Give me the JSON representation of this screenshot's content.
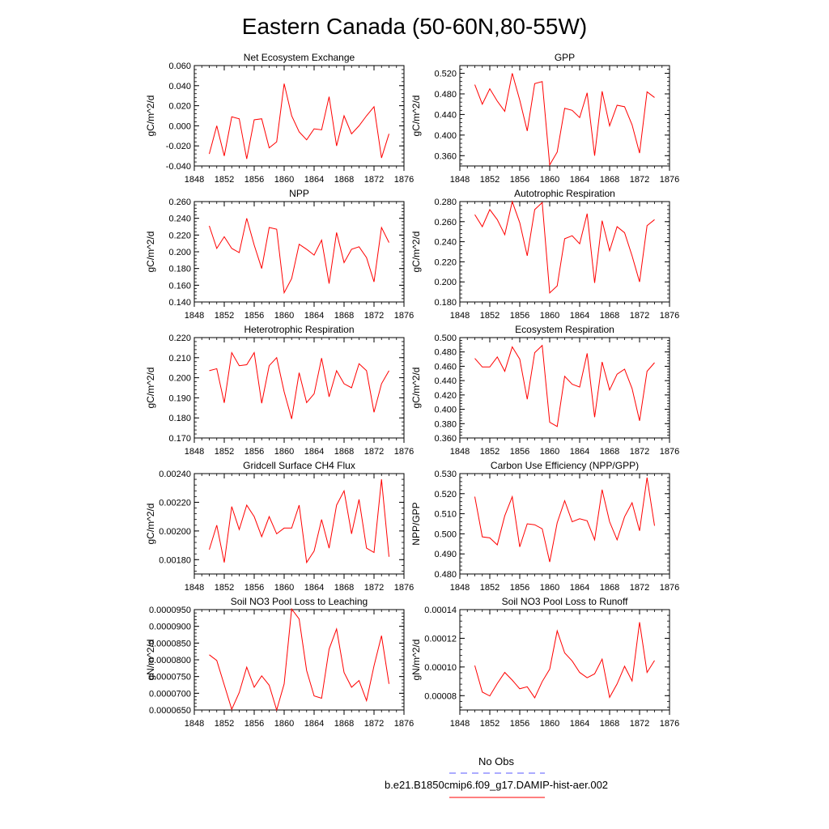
{
  "title": "Eastern Canada (50-60N,80-55W)",
  "x_ticks": [
    "1848",
    "1852",
    "1856",
    "1860",
    "1864",
    "1868",
    "1872",
    "1876"
  ],
  "legend": {
    "obs_label": "No Obs",
    "obs_color": "#5a5aff",
    "model_label": "b.e21.B1850cmip6.f09_g17.DAMIP-hist-aer.002",
    "model_color": "#ff0000"
  },
  "chart_data": [
    {
      "type": "line",
      "title": "Net Ecosystem Exchange",
      "ylabel": "gC/m^2/d",
      "xlim": [
        1848,
        1876
      ],
      "ylim": [
        -0.04,
        0.06
      ],
      "yticks": [
        -0.04,
        -0.02,
        0.0,
        0.02,
        0.04,
        0.06
      ],
      "ytick_labels": [
        "-0.040",
        "-0.020",
        "0.000",
        "0.020",
        "0.040",
        "0.060"
      ],
      "x": [
        1850,
        1851,
        1852,
        1853,
        1854,
        1855,
        1856,
        1857,
        1858,
        1859,
        1860,
        1861,
        1862,
        1863,
        1864,
        1865,
        1866,
        1867,
        1868,
        1869,
        1870,
        1871,
        1872,
        1873,
        1874
      ],
      "series": [
        {
          "color": "#ff0000",
          "values": [
            -0.028,
            0.0,
            -0.03,
            0.009,
            0.007,
            -0.033,
            0.006,
            0.007,
            -0.022,
            -0.016,
            0.042,
            0.01,
            -0.006,
            -0.014,
            -0.003,
            -0.004,
            0.029,
            -0.02,
            0.01,
            -0.008,
            0.0,
            0.01,
            0.019,
            -0.032,
            -0.008
          ]
        }
      ]
    },
    {
      "type": "line",
      "title": "GPP",
      "ylabel": "gC/m^2/d",
      "xlim": [
        1848,
        1876
      ],
      "ylim": [
        0.34,
        0.535
      ],
      "yticks": [
        0.36,
        0.4,
        0.44,
        0.48,
        0.52
      ],
      "ytick_labels": [
        "0.360",
        "0.400",
        "0.440",
        "0.480",
        "0.520"
      ],
      "x": [
        1850,
        1851,
        1852,
        1853,
        1854,
        1855,
        1856,
        1857,
        1858,
        1859,
        1860,
        1861,
        1862,
        1863,
        1864,
        1865,
        1866,
        1867,
        1868,
        1869,
        1870,
        1871,
        1872,
        1873,
        1874
      ],
      "series": [
        {
          "color": "#ff0000",
          "values": [
            0.498,
            0.46,
            0.49,
            0.466,
            0.446,
            0.52,
            0.468,
            0.408,
            0.5,
            0.504,
            0.342,
            0.367,
            0.452,
            0.448,
            0.434,
            0.482,
            0.36,
            0.485,
            0.418,
            0.458,
            0.455,
            0.42,
            0.365,
            0.484,
            0.473
          ]
        }
      ]
    },
    {
      "type": "line",
      "title": "NPP",
      "ylabel": "gC/m^2/d",
      "xlim": [
        1848,
        1876
      ],
      "ylim": [
        0.14,
        0.26
      ],
      "yticks": [
        0.14,
        0.16,
        0.18,
        0.2,
        0.22,
        0.24,
        0.26
      ],
      "ytick_labels": [
        "0.140",
        "0.160",
        "0.180",
        "0.200",
        "0.220",
        "0.240",
        "0.260"
      ],
      "x": [
        1850,
        1851,
        1852,
        1853,
        1854,
        1855,
        1856,
        1857,
        1858,
        1859,
        1860,
        1861,
        1862,
        1863,
        1864,
        1865,
        1866,
        1867,
        1868,
        1869,
        1870,
        1871,
        1872,
        1873,
        1874
      ],
      "series": [
        {
          "color": "#ff0000",
          "values": [
            0.231,
            0.204,
            0.218,
            0.204,
            0.199,
            0.24,
            0.208,
            0.18,
            0.229,
            0.227,
            0.151,
            0.168,
            0.209,
            0.203,
            0.196,
            0.214,
            0.162,
            0.223,
            0.187,
            0.203,
            0.206,
            0.193,
            0.164,
            0.229,
            0.211
          ]
        }
      ]
    },
    {
      "type": "line",
      "title": "Autotrophic Respiration",
      "ylabel": "gC/m^2/d",
      "xlim": [
        1848,
        1876
      ],
      "ylim": [
        0.18,
        0.28
      ],
      "yticks": [
        0.18,
        0.2,
        0.22,
        0.24,
        0.26,
        0.28
      ],
      "ytick_labels": [
        "0.180",
        "0.200",
        "0.220",
        "0.240",
        "0.260",
        "0.280"
      ],
      "x": [
        1850,
        1851,
        1852,
        1853,
        1854,
        1855,
        1856,
        1857,
        1858,
        1859,
        1860,
        1861,
        1862,
        1863,
        1864,
        1865,
        1866,
        1867,
        1868,
        1869,
        1870,
        1871,
        1872,
        1873,
        1874
      ],
      "series": [
        {
          "color": "#ff0000",
          "values": [
            0.267,
            0.255,
            0.272,
            0.262,
            0.247,
            0.28,
            0.259,
            0.226,
            0.272,
            0.279,
            0.189,
            0.196,
            0.243,
            0.246,
            0.238,
            0.268,
            0.199,
            0.261,
            0.231,
            0.255,
            0.249,
            0.226,
            0.2,
            0.256,
            0.262
          ]
        }
      ]
    },
    {
      "type": "line",
      "title": "Heterotrophic Respiration",
      "ylabel": "gC/m^2/d",
      "xlim": [
        1848,
        1876
      ],
      "ylim": [
        0.17,
        0.22
      ],
      "yticks": [
        0.17,
        0.18,
        0.19,
        0.2,
        0.21,
        0.22
      ],
      "ytick_labels": [
        "0.170",
        "0.180",
        "0.190",
        "0.200",
        "0.210",
        "0.220"
      ],
      "x": [
        1850,
        1851,
        1852,
        1853,
        1854,
        1855,
        1856,
        1857,
        1858,
        1859,
        1860,
        1861,
        1862,
        1863,
        1864,
        1865,
        1866,
        1867,
        1868,
        1869,
        1870,
        1871,
        1872,
        1873,
        1874
      ],
      "series": [
        {
          "color": "#ff0000",
          "values": [
            0.2035,
            0.2045,
            0.1875,
            0.2125,
            0.206,
            0.2065,
            0.2125,
            0.1873,
            0.206,
            0.21,
            0.193,
            0.1795,
            0.2025,
            0.1876,
            0.192,
            0.2098,
            0.1905,
            0.2035,
            0.197,
            0.195,
            0.207,
            0.2035,
            0.1828,
            0.197,
            0.2035
          ]
        }
      ]
    },
    {
      "type": "line",
      "title": "Ecosystem Respiration",
      "ylabel": "gC/m^2/d",
      "xlim": [
        1848,
        1876
      ],
      "ylim": [
        0.36,
        0.5
      ],
      "yticks": [
        0.36,
        0.38,
        0.4,
        0.42,
        0.44,
        0.46,
        0.48,
        0.5
      ],
      "ytick_labels": [
        "0.360",
        "0.380",
        "0.400",
        "0.420",
        "0.440",
        "0.460",
        "0.480",
        "0.500"
      ],
      "x": [
        1850,
        1851,
        1852,
        1853,
        1854,
        1855,
        1856,
        1857,
        1858,
        1859,
        1860,
        1861,
        1862,
        1863,
        1864,
        1865,
        1866,
        1867,
        1868,
        1869,
        1870,
        1871,
        1872,
        1873,
        1874
      ],
      "series": [
        {
          "color": "#ff0000",
          "values": [
            0.471,
            0.459,
            0.459,
            0.473,
            0.453,
            0.487,
            0.47,
            0.414,
            0.479,
            0.489,
            0.382,
            0.376,
            0.446,
            0.435,
            0.431,
            0.478,
            0.389,
            0.466,
            0.427,
            0.449,
            0.456,
            0.429,
            0.384,
            0.453,
            0.465
          ]
        }
      ]
    },
    {
      "type": "line",
      "title": "Gridcell Surface CH4 Flux",
      "ylabel": "gC/m^2/d",
      "xlim": [
        1848,
        1876
      ],
      "ylim": [
        0.0017,
        0.0024
      ],
      "yticks": [
        0.0018,
        0.002,
        0.0022,
        0.0024
      ],
      "ytick_labels": [
        "0.00180",
        "0.00200",
        "0.00220",
        "0.00240"
      ],
      "x": [
        1850,
        1851,
        1852,
        1853,
        1854,
        1855,
        1856,
        1857,
        1858,
        1859,
        1860,
        1861,
        1862,
        1863,
        1864,
        1865,
        1866,
        1867,
        1868,
        1869,
        1870,
        1871,
        1872,
        1873,
        1874
      ],
      "series": [
        {
          "color": "#ff0000",
          "values": [
            0.00187,
            0.00204,
            0.00178,
            0.00217,
            0.00201,
            0.00218,
            0.0021,
            0.00196,
            0.0021,
            0.00198,
            0.00202,
            0.00202,
            0.00218,
            0.00178,
            0.00186,
            0.00208,
            0.00188,
            0.00218,
            0.00228,
            0.00198,
            0.00222,
            0.00188,
            0.00185,
            0.00236,
            0.00182
          ]
        }
      ]
    },
    {
      "type": "line",
      "title": "Carbon Use Efficiency (NPP/GPP)",
      "ylabel": "NPP/GPP",
      "xlim": [
        1848,
        1876
      ],
      "ylim": [
        0.48,
        0.53
      ],
      "yticks": [
        0.48,
        0.49,
        0.5,
        0.51,
        0.52,
        0.53
      ],
      "ytick_labels": [
        "0.480",
        "0.490",
        "0.500",
        "0.510",
        "0.520",
        "0.530"
      ],
      "x": [
        1850,
        1851,
        1852,
        1853,
        1854,
        1855,
        1856,
        1857,
        1858,
        1859,
        1860,
        1861,
        1862,
        1863,
        1864,
        1865,
        1866,
        1867,
        1868,
        1869,
        1870,
        1871,
        1872,
        1873,
        1874
      ],
      "series": [
        {
          "color": "#ff0000",
          "values": [
            0.5185,
            0.4985,
            0.498,
            0.4945,
            0.509,
            0.5185,
            0.4935,
            0.505,
            0.5045,
            0.5025,
            0.486,
            0.5055,
            0.5165,
            0.506,
            0.5075,
            0.5065,
            0.497,
            0.522,
            0.506,
            0.497,
            0.5085,
            0.5155,
            0.5015,
            0.528,
            0.504
          ]
        }
      ]
    },
    {
      "type": "line",
      "title": "Soil NO3 Pool Loss to Leaching",
      "ylabel": "gN/m^2/d",
      "xlim": [
        1848,
        1876
      ],
      "ylim": [
        6.5e-05,
        9.5e-05
      ],
      "yticks": [
        6.5e-05,
        7e-05,
        7.5e-05,
        8e-05,
        8.5e-05,
        9e-05,
        9.5e-05
      ],
      "ytick_labels": [
        "0.0000650",
        "0.0000700",
        "0.0000750",
        "0.0000800",
        "0.0000850",
        "0.0000900",
        "0.0000950"
      ],
      "x": [
        1850,
        1851,
        1852,
        1853,
        1854,
        1855,
        1856,
        1857,
        1858,
        1859,
        1860,
        1861,
        1862,
        1863,
        1864,
        1865,
        1866,
        1867,
        1868,
        1869,
        1870,
        1871,
        1872,
        1873,
        1874
      ],
      "series": [
        {
          "color": "#ff0000",
          "values": [
            8.15e-05,
            7.98e-05,
            7.25e-05,
            6.52e-05,
            7.02e-05,
            7.78e-05,
            7.18e-05,
            7.52e-05,
            7.24e-05,
            6.5e-05,
            7.28e-05,
            9.52e-05,
            9.22e-05,
            7.68e-05,
            6.92e-05,
            6.85e-05,
            8.32e-05,
            8.92e-05,
            7.62e-05,
            7.18e-05,
            7.38e-05,
            6.78e-05,
            7.82e-05,
            8.72e-05,
            7.28e-05
          ]
        }
      ]
    },
    {
      "type": "line",
      "title": "Soil NO3 Pool Loss to Runoff",
      "ylabel": "gN/m^2/d",
      "xlim": [
        1848,
        1876
      ],
      "ylim": [
        7e-05,
        0.00014
      ],
      "yticks": [
        8e-05,
        0.0001,
        0.00012,
        0.00014
      ],
      "ytick_labels": [
        "0.00008",
        "0.00010",
        "0.00012",
        "0.00014"
      ],
      "x": [
        1850,
        1851,
        1852,
        1853,
        1854,
        1855,
        1856,
        1857,
        1858,
        1859,
        1860,
        1861,
        1862,
        1863,
        1864,
        1865,
        1866,
        1867,
        1868,
        1869,
        1870,
        1871,
        1872,
        1873,
        1874
      ],
      "series": [
        {
          "color": "#ff0000",
          "values": [
            0.000101,
            8.25e-05,
            7.98e-05,
            8.85e-05,
            9.62e-05,
            9.08e-05,
            8.48e-05,
            8.62e-05,
            7.85e-05,
            8.98e-05,
            9.85e-05,
            0.0001252,
            0.0001098,
            0.0001042,
            9.62e-05,
            9.25e-05,
            9.52e-05,
            0.0001055,
            7.88e-05,
            8.82e-05,
            0.0001005,
            9.02e-05,
            0.0001312,
            9.62e-05,
            0.0001045
          ]
        }
      ]
    }
  ]
}
